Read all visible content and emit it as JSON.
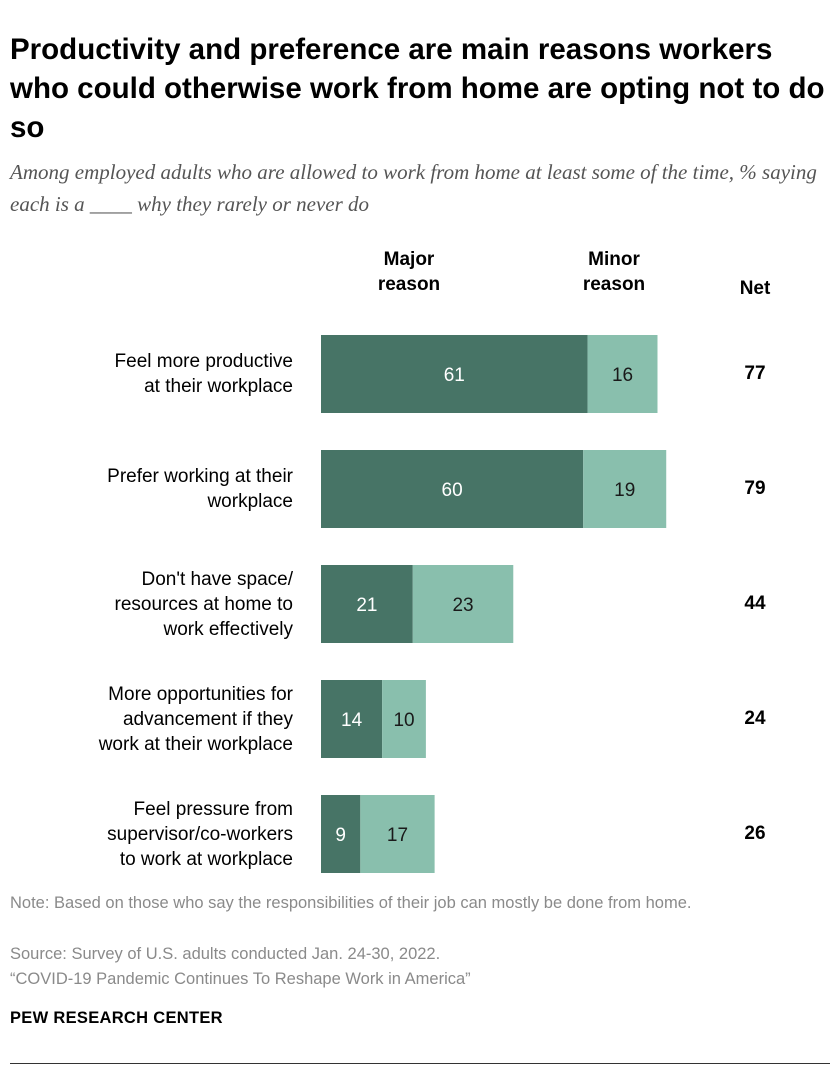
{
  "title": "Productivity and preference are main reasons workers who could otherwise work from home are opting not to do so",
  "subtitle": "Among employed adults who are allowed to work from home at least some of the time, % saying each is a ____ why they rarely or never do",
  "columns": {
    "major": [
      "Major",
      "reason"
    ],
    "minor": [
      "Minor",
      "reason"
    ],
    "net": "Net"
  },
  "colors": {
    "major": "#477466",
    "minor": "#89bfad"
  },
  "chart_data": {
    "type": "bar",
    "orientation": "horizontal",
    "stacked": true,
    "categories": [
      [
        "Feel more productive",
        "at their workplace"
      ],
      [
        "Prefer working at their",
        "workplace"
      ],
      [
        "Don't have space/",
        "resources at home to",
        "work effectively"
      ],
      [
        "More opportunities for",
        "advancement if they",
        "work at their workplace"
      ],
      [
        "Feel pressure from",
        "supervisor/co-workers",
        "to work at workplace"
      ]
    ],
    "series": [
      {
        "name": "Major reason",
        "values": [
          61,
          60,
          21,
          14,
          9
        ]
      },
      {
        "name": "Minor reason",
        "values": [
          16,
          19,
          23,
          10,
          17
        ]
      }
    ],
    "net": [
      77,
      79,
      44,
      24,
      26
    ],
    "xlim": [
      0,
      100
    ]
  },
  "footer": {
    "note": "Note: Based on those who say the responsibilities of their job can mostly be done from home.",
    "source": "Source:  Survey of U.S. adults conducted Jan. 24-30, 2022.",
    "report": "“COVID-19 Pandemic Continues To Reshape Work in America”",
    "brand": "PEW RESEARCH CENTER"
  }
}
